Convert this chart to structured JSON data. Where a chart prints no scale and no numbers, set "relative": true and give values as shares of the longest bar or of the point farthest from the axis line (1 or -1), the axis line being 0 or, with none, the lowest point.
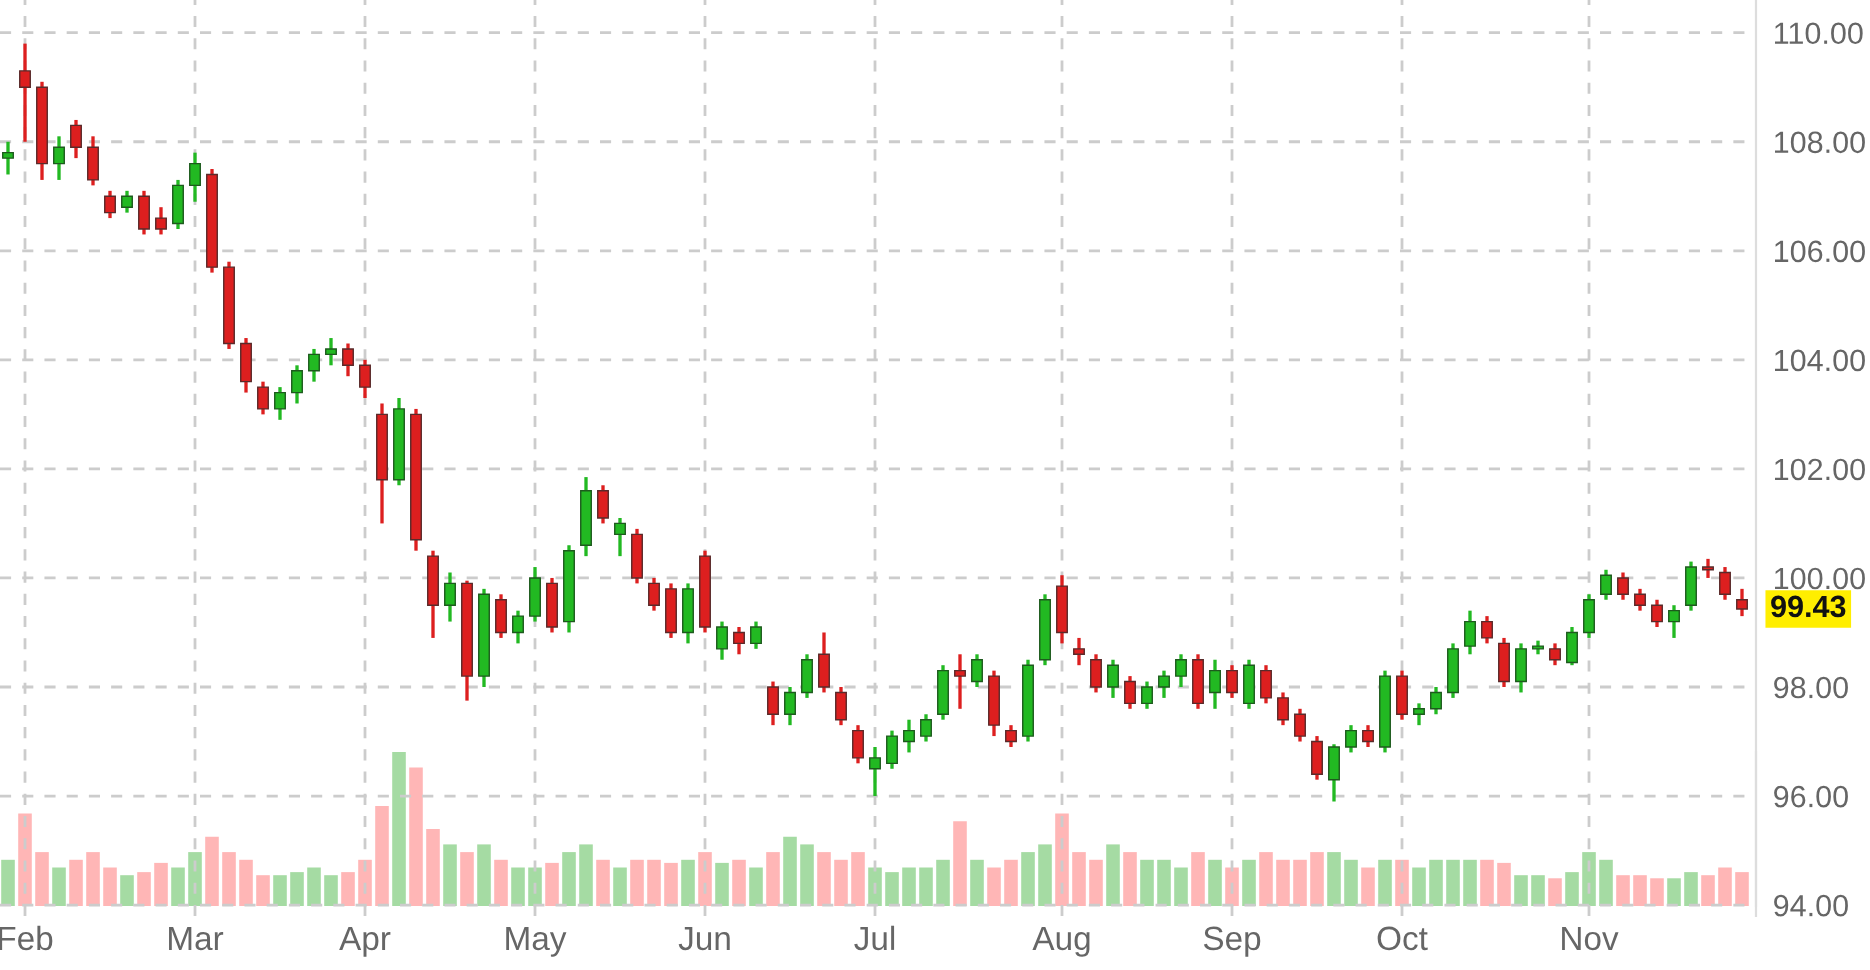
{
  "chart_data": [
    {
      "type": "candlestick",
      "categories": [
        null,
        "Feb",
        null,
        null,
        null,
        null,
        null,
        null,
        null,
        null,
        null,
        "Mar",
        null,
        null,
        null,
        null,
        null,
        null,
        null,
        null,
        null,
        "Apr",
        null,
        null,
        null,
        null,
        null,
        null,
        null,
        null,
        null,
        "May",
        null,
        null,
        null,
        null,
        null,
        null,
        null,
        null,
        null,
        "Jun",
        null,
        null,
        null,
        null,
        null,
        null,
        null,
        null,
        null,
        "Jul",
        null,
        null,
        null,
        null,
        null,
        null,
        null,
        null,
        null,
        null,
        "Aug",
        null,
        null,
        null,
        null,
        null,
        null,
        null,
        null,
        null,
        "Sep",
        null,
        null,
        null,
        null,
        null,
        null,
        null,
        null,
        null,
        "Oct",
        null,
        null,
        null,
        null,
        null,
        null,
        null,
        null,
        null,
        null,
        "Nov",
        null,
        null,
        null,
        null,
        null,
        null,
        null,
        null,
        null
      ],
      "ohlc": [
        [
          107.7,
          108.0,
          107.4,
          107.8
        ],
        [
          109.3,
          109.8,
          108.0,
          109.0
        ],
        [
          109.0,
          109.1,
          107.3,
          107.6
        ],
        [
          107.6,
          108.1,
          107.3,
          107.9
        ],
        [
          108.3,
          108.4,
          107.7,
          107.9
        ],
        [
          107.9,
          108.1,
          107.2,
          107.3
        ],
        [
          107.0,
          107.1,
          106.6,
          106.7
        ],
        [
          106.8,
          107.1,
          106.7,
          107.0
        ],
        [
          107.0,
          107.1,
          106.3,
          106.4
        ],
        [
          106.6,
          106.8,
          106.3,
          106.4
        ],
        [
          106.5,
          107.3,
          106.4,
          107.2
        ],
        [
          107.2,
          107.8,
          106.9,
          107.6
        ],
        [
          107.4,
          107.5,
          105.6,
          105.7
        ],
        [
          105.7,
          105.8,
          104.2,
          104.3
        ],
        [
          104.3,
          104.4,
          103.4,
          103.6
        ],
        [
          103.5,
          103.6,
          103.0,
          103.1
        ],
        [
          103.1,
          103.5,
          102.9,
          103.4
        ],
        [
          103.4,
          103.9,
          103.2,
          103.8
        ],
        [
          103.8,
          104.2,
          103.6,
          104.1
        ],
        [
          104.1,
          104.4,
          103.9,
          104.2
        ],
        [
          104.2,
          104.3,
          103.7,
          103.9
        ],
        [
          103.9,
          104.0,
          103.3,
          103.5
        ],
        [
          103.0,
          103.2,
          101.0,
          101.8
        ],
        [
          101.8,
          103.3,
          101.7,
          103.1
        ],
        [
          103.0,
          103.1,
          100.5,
          100.7
        ],
        [
          100.4,
          100.5,
          98.9,
          99.5
        ],
        [
          99.5,
          100.1,
          99.2,
          99.9
        ],
        [
          99.9,
          99.95,
          97.75,
          98.2
        ],
        [
          98.2,
          99.8,
          98.0,
          99.7
        ],
        [
          99.6,
          99.7,
          98.9,
          99.0
        ],
        [
          99.0,
          99.4,
          98.8,
          99.3
        ],
        [
          99.3,
          100.2,
          99.2,
          100.0
        ],
        [
          99.9,
          100.0,
          99.0,
          99.1
        ],
        [
          99.2,
          100.6,
          99.0,
          100.5
        ],
        [
          100.6,
          101.85,
          100.4,
          101.6
        ],
        [
          101.6,
          101.7,
          101.0,
          101.1
        ],
        [
          100.8,
          101.1,
          100.4,
          101.0
        ],
        [
          100.8,
          100.9,
          99.9,
          100.0
        ],
        [
          99.9,
          100.0,
          99.4,
          99.5
        ],
        [
          99.8,
          99.9,
          98.9,
          99.0
        ],
        [
          99.0,
          99.9,
          98.8,
          99.8
        ],
        [
          100.4,
          100.5,
          99.0,
          99.1
        ],
        [
          98.7,
          99.2,
          98.5,
          99.1
        ],
        [
          99.0,
          99.1,
          98.6,
          98.8
        ],
        [
          98.8,
          99.2,
          98.7,
          99.1
        ],
        [
          98.0,
          98.1,
          97.3,
          97.5
        ],
        [
          97.5,
          98.0,
          97.3,
          97.9
        ],
        [
          97.9,
          98.6,
          97.8,
          98.5
        ],
        [
          98.6,
          99.0,
          97.9,
          98.0
        ],
        [
          97.9,
          98.0,
          97.3,
          97.4
        ],
        [
          97.2,
          97.3,
          96.6,
          96.7
        ],
        [
          96.5,
          96.9,
          96.0,
          96.7
        ],
        [
          96.6,
          97.2,
          96.5,
          97.1
        ],
        [
          97.0,
          97.4,
          96.8,
          97.2
        ],
        [
          97.1,
          97.5,
          97.0,
          97.4
        ],
        [
          97.5,
          98.4,
          97.4,
          98.3
        ],
        [
          98.3,
          98.6,
          97.6,
          98.2
        ],
        [
          98.1,
          98.6,
          98.0,
          98.5
        ],
        [
          98.2,
          98.3,
          97.1,
          97.3
        ],
        [
          97.2,
          97.3,
          96.9,
          97.0
        ],
        [
          97.1,
          98.5,
          97.0,
          98.4
        ],
        [
          98.5,
          99.7,
          98.4,
          99.6
        ],
        [
          99.85,
          100.05,
          98.8,
          99.0
        ],
        [
          98.7,
          98.9,
          98.4,
          98.6
        ],
        [
          98.5,
          98.6,
          97.9,
          98.0
        ],
        [
          98.0,
          98.5,
          97.8,
          98.4
        ],
        [
          98.1,
          98.2,
          97.6,
          97.7
        ],
        [
          97.7,
          98.1,
          97.6,
          98.0
        ],
        [
          98.0,
          98.3,
          97.8,
          98.2
        ],
        [
          98.2,
          98.6,
          98.0,
          98.5
        ],
        [
          98.5,
          98.6,
          97.6,
          97.7
        ],
        [
          97.9,
          98.5,
          97.6,
          98.3
        ],
        [
          98.3,
          98.4,
          97.8,
          97.9
        ],
        [
          97.7,
          98.5,
          97.6,
          98.4
        ],
        [
          98.3,
          98.4,
          97.7,
          97.8
        ],
        [
          97.8,
          97.9,
          97.3,
          97.4
        ],
        [
          97.5,
          97.6,
          97.0,
          97.1
        ],
        [
          97.0,
          97.1,
          96.3,
          96.4
        ],
        [
          96.3,
          96.95,
          95.9,
          96.9
        ],
        [
          96.9,
          97.3,
          96.8,
          97.2
        ],
        [
          97.2,
          97.3,
          96.9,
          97.0
        ],
        [
          96.9,
          98.3,
          96.8,
          98.2
        ],
        [
          98.2,
          98.3,
          97.4,
          97.5
        ],
        [
          97.5,
          97.7,
          97.3,
          97.6
        ],
        [
          97.6,
          98.0,
          97.5,
          97.9
        ],
        [
          97.9,
          98.8,
          97.8,
          98.7
        ],
        [
          98.75,
          99.4,
          98.6,
          99.2
        ],
        [
          99.2,
          99.3,
          98.8,
          98.9
        ],
        [
          98.8,
          98.9,
          98.0,
          98.1
        ],
        [
          98.1,
          98.8,
          97.9,
          98.7
        ],
        [
          98.7,
          98.85,
          98.6,
          98.75
        ],
        [
          98.7,
          98.8,
          98.4,
          98.5
        ],
        [
          98.45,
          99.1,
          98.4,
          99.0
        ],
        [
          99.0,
          99.7,
          98.9,
          99.6
        ],
        [
          99.7,
          100.15,
          99.6,
          100.05
        ],
        [
          100.0,
          100.1,
          99.6,
          99.7
        ],
        [
          99.7,
          99.8,
          99.4,
          99.5
        ],
        [
          99.5,
          99.6,
          99.1,
          99.2
        ],
        [
          99.2,
          99.5,
          98.9,
          99.4
        ],
        [
          99.5,
          100.3,
          99.4,
          100.2
        ],
        [
          100.2,
          100.35,
          100.0,
          100.15
        ],
        [
          100.1,
          100.2,
          99.6,
          99.7
        ],
        [
          99.6,
          99.8,
          99.3,
          99.43
        ]
      ],
      "colors": [
        "#22b922",
        "#dd1f1f",
        "#dd1f1f",
        "#22b922",
        "#dd1f1f",
        "#dd1f1f",
        "#dd1f1f",
        "#22b922",
        "#dd1f1f",
        "#dd1f1f",
        "#22b922",
        "#22b922",
        "#dd1f1f",
        "#dd1f1f",
        "#dd1f1f",
        "#dd1f1f",
        "#22b922",
        "#22b922",
        "#22b922",
        "#22b922",
        "#dd1f1f",
        "#dd1f1f",
        "#dd1f1f",
        "#22b922",
        "#dd1f1f",
        "#dd1f1f",
        "#22b922",
        "#dd1f1f",
        "#22b922",
        "#dd1f1f",
        "#22b922",
        "#22b922",
        "#dd1f1f",
        "#22b922",
        "#22b922",
        "#dd1f1f",
        "#22b922",
        "#dd1f1f",
        "#dd1f1f",
        "#dd1f1f",
        "#22b922",
        "#dd1f1f",
        "#22b922",
        "#dd1f1f",
        "#22b922",
        "#dd1f1f",
        "#22b922",
        "#22b922",
        "#dd1f1f",
        "#dd1f1f",
        "#dd1f1f",
        "#22b922",
        "#22b922",
        "#22b922",
        "#22b922",
        "#22b922",
        "#dd1f1f",
        "#22b922",
        "#dd1f1f",
        "#dd1f1f",
        "#22b922",
        "#22b922",
        "#dd1f1f",
        "#dd1f1f",
        "#dd1f1f",
        "#22b922",
        "#dd1f1f",
        "#22b922",
        "#22b922",
        "#22b922",
        "#dd1f1f",
        "#22b922",
        "#dd1f1f",
        "#22b922",
        "#dd1f1f",
        "#dd1f1f",
        "#dd1f1f",
        "#dd1f1f",
        "#22b922",
        "#22b922",
        "#dd1f1f",
        "#22b922",
        "#dd1f1f",
        "#22b922",
        "#22b922",
        "#22b922",
        "#22b922",
        "#dd1f1f",
        "#dd1f1f",
        "#22b922",
        "#22b922",
        "#dd1f1f",
        "#22b922",
        "#22b922",
        "#22b922",
        "#dd1f1f",
        "#dd1f1f",
        "#dd1f1f",
        "#22b922",
        "#22b922",
        "#dd1f1f",
        "#dd1f1f",
        "#dd1f1f"
      ],
      "ylim": [
        93.8,
        110.6
      ],
      "yticks": [
        {
          "value": 94,
          "label": "94.00"
        },
        {
          "value": 96,
          "label": "96.00"
        },
        {
          "value": 98,
          "label": "98.00"
        },
        {
          "value": 100,
          "label": "100.00"
        },
        {
          "value": 102,
          "label": "102.00"
        },
        {
          "value": 104,
          "label": "104.00"
        },
        {
          "value": 106,
          "label": "106.00"
        },
        {
          "value": 108,
          "label": "108.00"
        },
        {
          "value": 110,
          "label": "110.00"
        }
      ],
      "grid": true,
      "annotations": [
        "99.43"
      ]
    },
    {
      "type": "bar",
      "relative": true,
      "categories": [
        null,
        null,
        null,
        null,
        null,
        null,
        null,
        null,
        null,
        null,
        null,
        null,
        null,
        null,
        null,
        null,
        null,
        null,
        null,
        null,
        null,
        null,
        null,
        null,
        null,
        null,
        null,
        null,
        null,
        null,
        null,
        null,
        null,
        null,
        null,
        null,
        null,
        null,
        null,
        null,
        null,
        null,
        null,
        null,
        null,
        null,
        null,
        null,
        null,
        null,
        null,
        null,
        null,
        null,
        null,
        null,
        null,
        null,
        null,
        null,
        null,
        null,
        null,
        null,
        null,
        null,
        null,
        null,
        null,
        null,
        null,
        null,
        null,
        null,
        null,
        null,
        null,
        null,
        null,
        null,
        null,
        null,
        null,
        null,
        null,
        null,
        null,
        null,
        null,
        null,
        null,
        null,
        null,
        null,
        null,
        null,
        null,
        null,
        null,
        null,
        null,
        null,
        null
      ],
      "values": [
        0.3,
        0.6,
        0.35,
        0.25,
        0.3,
        0.35,
        0.25,
        0.2,
        0.22,
        0.28,
        0.25,
        0.35,
        0.45,
        0.35,
        0.3,
        0.2,
        0.2,
        0.22,
        0.25,
        0.2,
        0.22,
        0.3,
        0.65,
        1.0,
        0.9,
        0.5,
        0.4,
        0.35,
        0.4,
        0.3,
        0.25,
        0.25,
        0.28,
        0.35,
        0.4,
        0.3,
        0.25,
        0.3,
        0.3,
        0.28,
        0.3,
        0.35,
        0.28,
        0.3,
        0.25,
        0.35,
        0.45,
        0.4,
        0.35,
        0.3,
        0.35,
        0.25,
        0.22,
        0.25,
        0.25,
        0.3,
        0.55,
        0.3,
        0.25,
        0.3,
        0.35,
        0.4,
        0.6,
        0.35,
        0.3,
        0.4,
        0.35,
        0.3,
        0.3,
        0.25,
        0.35,
        0.3,
        0.25,
        0.3,
        0.35,
        0.3,
        0.3,
        0.35,
        0.35,
        0.3,
        0.25,
        0.3,
        0.3,
        0.25,
        0.3,
        0.3,
        0.3,
        0.3,
        0.28,
        0.2,
        0.2,
        0.18,
        0.22,
        0.35,
        0.3,
        0.2,
        0.2,
        0.18,
        0.18,
        0.22,
        0.2,
        0.25,
        0.22
      ],
      "colors": [
        "#a5dba3",
        "#ffb6b6",
        "#ffb6b6",
        "#a5dba3",
        "#ffb6b6",
        "#ffb6b6",
        "#ffb6b6",
        "#a5dba3",
        "#ffb6b6",
        "#ffb6b6",
        "#a5dba3",
        "#a5dba3",
        "#ffb6b6",
        "#ffb6b6",
        "#ffb6b6",
        "#ffb6b6",
        "#a5dba3",
        "#a5dba3",
        "#a5dba3",
        "#a5dba3",
        "#ffb6b6",
        "#ffb6b6",
        "#ffb6b6",
        "#a5dba3",
        "#ffb6b6",
        "#ffb6b6",
        "#a5dba3",
        "#ffb6b6",
        "#a5dba3",
        "#ffb6b6",
        "#a5dba3",
        "#a5dba3",
        "#ffb6b6",
        "#a5dba3",
        "#a5dba3",
        "#ffb6b6",
        "#a5dba3",
        "#ffb6b6",
        "#ffb6b6",
        "#ffb6b6",
        "#a5dba3",
        "#ffb6b6",
        "#a5dba3",
        "#ffb6b6",
        "#a5dba3",
        "#ffb6b6",
        "#a5dba3",
        "#a5dba3",
        "#ffb6b6",
        "#ffb6b6",
        "#ffb6b6",
        "#a5dba3",
        "#a5dba3",
        "#a5dba3",
        "#a5dba3",
        "#a5dba3",
        "#ffb6b6",
        "#a5dba3",
        "#ffb6b6",
        "#ffb6b6",
        "#a5dba3",
        "#a5dba3",
        "#ffb6b6",
        "#ffb6b6",
        "#ffb6b6",
        "#a5dba3",
        "#ffb6b6",
        "#a5dba3",
        "#a5dba3",
        "#a5dba3",
        "#ffb6b6",
        "#a5dba3",
        "#ffb6b6",
        "#a5dba3",
        "#ffb6b6",
        "#ffb6b6",
        "#ffb6b6",
        "#ffb6b6",
        "#a5dba3",
        "#a5dba3",
        "#ffb6b6",
        "#a5dba3",
        "#ffb6b6",
        "#a5dba3",
        "#a5dba3",
        "#a5dba3",
        "#a5dba3",
        "#ffb6b6",
        "#ffb6b6",
        "#a5dba3",
        "#a5dba3",
        "#ffb6b6",
        "#a5dba3",
        "#a5dba3",
        "#a5dba3",
        "#ffb6b6",
        "#ffb6b6",
        "#ffb6b6",
        "#a5dba3",
        "#a5dba3",
        "#ffb6b6",
        "#ffb6b6",
        "#ffb6b6"
      ]
    }
  ]
}
